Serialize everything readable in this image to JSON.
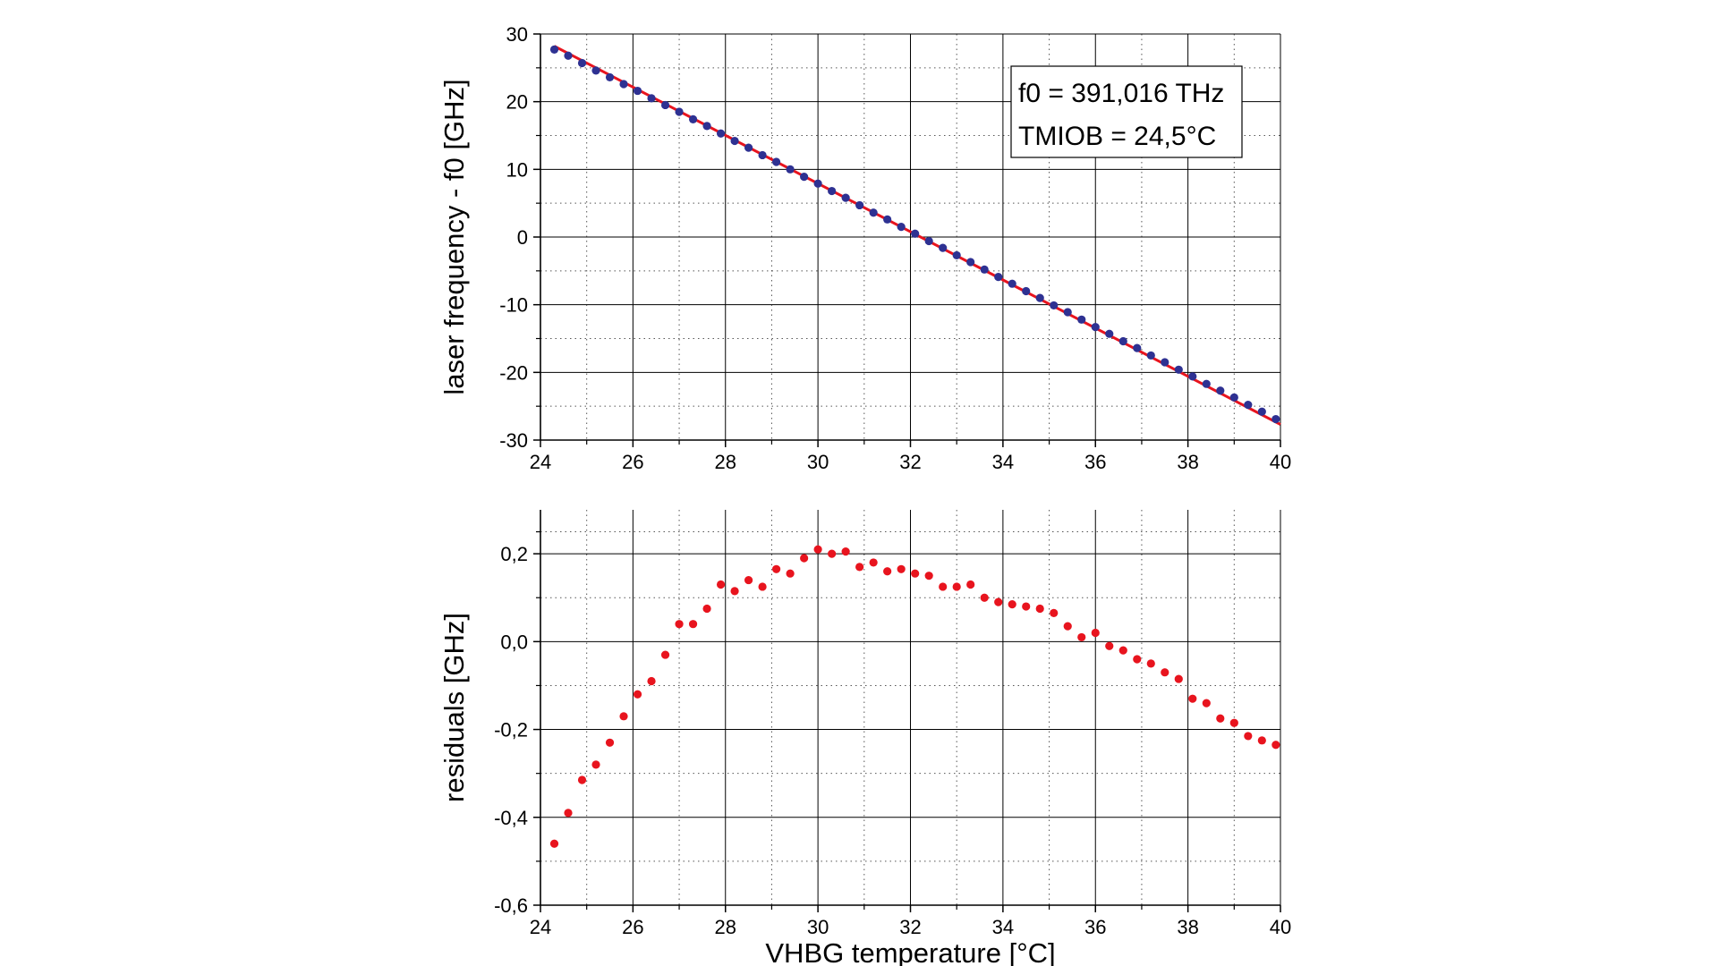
{
  "colors": {
    "frame": "#000000",
    "grid_major": "#000000",
    "grid_minor": "#555555",
    "fit_line": "#e8141e",
    "data_points": "#2e3192",
    "residual_points": "#e8141e",
    "background": "#ffffff"
  },
  "chart_data": [
    {
      "type": "scatter",
      "title": "",
      "xlabel": "",
      "ylabel": "laser frequency - f0 [GHz]",
      "xlim": [
        24,
        40
      ],
      "ylim": [
        -30,
        30
      ],
      "x_ticks": [
        24,
        26,
        28,
        30,
        32,
        34,
        36,
        38,
        40
      ],
      "y_ticks": [
        -30,
        -20,
        -10,
        0,
        10,
        20,
        30
      ],
      "x_tick_labels": [
        "24",
        "26",
        "28",
        "30",
        "32",
        "34",
        "36",
        "38",
        "40"
      ],
      "y_tick_labels": [
        "-30",
        "-20",
        "-10",
        "0",
        "10",
        "20",
        "30"
      ],
      "grid": true,
      "legend": "none",
      "annotation": {
        "line1": "f0 = 391,016 THz",
        "line2": "TMIOB = 24,5°C",
        "position": "top-right"
      },
      "fit_line": {
        "x": [
          24.3,
          40.0
        ],
        "y": [
          28.2,
          -27.7
        ]
      },
      "series": [
        {
          "marker": "dot",
          "x": [
            24.3,
            24.6,
            24.9,
            25.2,
            25.5,
            25.8,
            26.1,
            26.4,
            26.7,
            27.0,
            27.3,
            27.6,
            27.9,
            28.2,
            28.5,
            28.8,
            29.1,
            29.4,
            29.7,
            30.0,
            30.3,
            30.6,
            30.9,
            31.2,
            31.5,
            31.8,
            32.1,
            32.4,
            32.7,
            33.0,
            33.3,
            33.6,
            33.9,
            34.2,
            34.5,
            34.8,
            35.1,
            35.4,
            35.7,
            36.0,
            36.3,
            36.6,
            36.9,
            37.2,
            37.5,
            37.8,
            38.1,
            38.4,
            38.7,
            39.0,
            39.3,
            39.6,
            39.9
          ],
          "y": [
            27.7,
            26.8,
            25.7,
            24.6,
            23.6,
            22.6,
            21.6,
            20.5,
            19.5,
            18.5,
            17.4,
            16.4,
            15.3,
            14.2,
            13.2,
            12.1,
            11.1,
            10.0,
            8.9,
            7.9,
            6.8,
            5.8,
            4.7,
            3.6,
            2.6,
            1.5,
            0.5,
            -0.6,
            -1.6,
            -2.7,
            -3.7,
            -4.8,
            -5.9,
            -6.9,
            -8.0,
            -9.0,
            -10.1,
            -11.1,
            -12.2,
            -13.3,
            -14.3,
            -15.4,
            -16.4,
            -17.5,
            -18.5,
            -19.6,
            -20.6,
            -21.7,
            -22.7,
            -23.7,
            -24.8,
            -25.8,
            -26.9
          ]
        }
      ]
    },
    {
      "type": "scatter",
      "title": "",
      "xlabel": "VHBG temperature [°C]",
      "ylabel": "residuals [GHz]",
      "xlim": [
        24,
        40
      ],
      "ylim": [
        -0.6,
        0.3
      ],
      "x_ticks": [
        24,
        26,
        28,
        30,
        32,
        34,
        36,
        38,
        40
      ],
      "y_ticks": [
        -0.6,
        -0.4,
        -0.2,
        0.0,
        0.2
      ],
      "x_tick_labels": [
        "24",
        "26",
        "28",
        "30",
        "32",
        "34",
        "36",
        "38",
        "40"
      ],
      "y_tick_labels": [
        "-0,6",
        "-0,4",
        "-0,2",
        "0,0",
        "0,2"
      ],
      "grid": true,
      "legend": "none",
      "series": [
        {
          "marker": "dot",
          "x": [
            24.3,
            24.6,
            24.9,
            25.2,
            25.5,
            25.8,
            26.1,
            26.4,
            26.7,
            27.0,
            27.3,
            27.6,
            27.9,
            28.2,
            28.5,
            28.8,
            29.1,
            29.4,
            29.7,
            30.0,
            30.3,
            30.6,
            30.9,
            31.2,
            31.5,
            31.8,
            32.1,
            32.4,
            32.7,
            33.0,
            33.3,
            33.6,
            33.9,
            34.2,
            34.5,
            34.8,
            35.1,
            35.4,
            35.7,
            36.0,
            36.3,
            36.6,
            36.9,
            37.2,
            37.5,
            37.8,
            38.1,
            38.4,
            38.7,
            39.0,
            39.3,
            39.6,
            39.9
          ],
          "y": [
            -0.46,
            -0.39,
            -0.315,
            -0.28,
            -0.23,
            -0.17,
            -0.12,
            -0.09,
            -0.03,
            0.04,
            0.04,
            0.075,
            0.13,
            0.115,
            0.14,
            0.125,
            0.165,
            0.155,
            0.19,
            0.21,
            0.2,
            0.205,
            0.17,
            0.18,
            0.16,
            0.165,
            0.155,
            0.15,
            0.125,
            0.125,
            0.13,
            0.1,
            0.09,
            0.085,
            0.08,
            0.075,
            0.065,
            0.035,
            0.01,
            0.02,
            -0.01,
            -0.02,
            -0.04,
            -0.05,
            -0.07,
            -0.085,
            -0.13,
            -0.14,
            -0.175,
            -0.185,
            -0.215,
            -0.225,
            -0.235
          ]
        }
      ]
    }
  ]
}
